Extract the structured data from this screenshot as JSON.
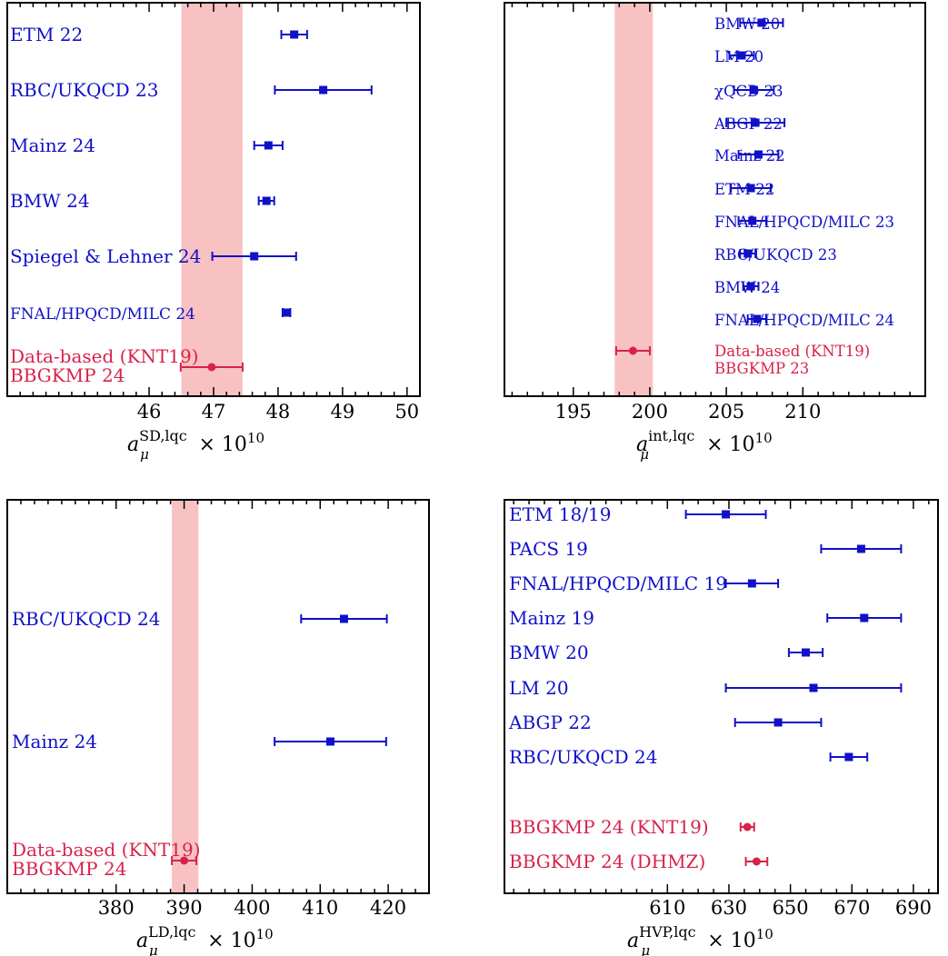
{
  "colors": {
    "lattice": "#1010c8",
    "data_based": "#d8224a",
    "band": "#f9c2c2"
  },
  "chart_data": [
    {
      "id": "sd",
      "type": "scatter",
      "subtype": "forest-plot",
      "xlabel": {
        "symbol": "a",
        "sub": "μ",
        "sup": "SD,lqc",
        "factor": "× 10",
        "exp": "10"
      },
      "xlim": [
        43.8,
        50.2
      ],
      "ticks": [
        46,
        47,
        48,
        49,
        50
      ],
      "tick_labels": [
        "46",
        "47",
        "48",
        "49",
        "50"
      ],
      "band": [
        46.5,
        47.45
      ],
      "entries": [
        {
          "label": "ETM 22",
          "value": 48.25,
          "err_lo": 0.2,
          "err_hi": 0.2,
          "group": "lattice"
        },
        {
          "label": "RBC/UKQCD 23",
          "value": 48.7,
          "err_lo": 0.75,
          "err_hi": 0.75,
          "group": "lattice"
        },
        {
          "label": "Mainz 24",
          "value": 47.85,
          "err_lo": 0.22,
          "err_hi": 0.22,
          "group": "lattice"
        },
        {
          "label": "BMW 24",
          "value": 47.82,
          "err_lo": 0.12,
          "err_hi": 0.12,
          "group": "lattice"
        },
        {
          "label": "Spiegel & Lehner 24",
          "value": 47.63,
          "err_lo": 0.65,
          "err_hi": 0.65,
          "group": "lattice"
        },
        {
          "label": "FNAL/HPQCD/MILC 24",
          "value": 48.13,
          "err_lo": 0.06,
          "err_hi": 0.06,
          "group": "lattice"
        },
        {
          "label": "Data-based (KNT19)",
          "label2": "BBGKMP 24",
          "value": 46.97,
          "err_lo": 0.48,
          "err_hi": 0.48,
          "group": "data"
        }
      ]
    },
    {
      "id": "int",
      "type": "scatter",
      "subtype": "forest-plot",
      "xlabel": {
        "symbol": "a",
        "sub": "μ",
        "sup": "int,lqc",
        "factor": "× 10",
        "exp": "10"
      },
      "xlim": [
        190.5,
        218
      ],
      "ticks": [
        195,
        200,
        205,
        210
      ],
      "tick_labels": [
        "195",
        "200",
        "205",
        "210"
      ],
      "band": [
        197.7,
        200.2
      ],
      "entries": [
        {
          "label": "BMW 20",
          "value": 207.3,
          "err_lo": 1.4,
          "err_hi": 1.4,
          "group": "lattice"
        },
        {
          "label": "LM 20",
          "value": 206.0,
          "err_lo": 0.8,
          "err_hi": 0.8,
          "group": "lattice"
        },
        {
          "label": "χQCD 23",
          "value": 206.8,
          "err_lo": 1.3,
          "err_hi": 1.3,
          "group": "lattice"
        },
        {
          "label": "ABGP 22",
          "value": 206.9,
          "err_lo": 1.9,
          "err_hi": 1.9,
          "group": "lattice"
        },
        {
          "label": "Mainz 22",
          "value": 207.1,
          "err_lo": 1.3,
          "err_hi": 1.3,
          "group": "lattice"
        },
        {
          "label": "ETM 22",
          "value": 206.6,
          "err_lo": 1.3,
          "err_hi": 1.3,
          "group": "lattice"
        },
        {
          "label": "FNAL/HPQCD/MILC 23",
          "value": 206.7,
          "err_lo": 0.9,
          "err_hi": 0.9,
          "group": "lattice"
        },
        {
          "label": "RBC/UKQCD 23",
          "value": 206.4,
          "err_lo": 0.5,
          "err_hi": 0.5,
          "group": "lattice"
        },
        {
          "label": "BMW 24",
          "value": 206.6,
          "err_lo": 0.5,
          "err_hi": 0.5,
          "group": "lattice"
        },
        {
          "label": "FNAL/HPQCD/MILC 24",
          "value": 207.0,
          "err_lo": 0.6,
          "err_hi": 0.6,
          "group": "lattice"
        },
        {
          "label": "Data-based (KNT19)",
          "label2": "BBGKMP 23",
          "value": 198.9,
          "err_lo": 1.1,
          "err_hi": 1.1,
          "group": "data"
        }
      ]
    },
    {
      "id": "ld",
      "type": "scatter",
      "subtype": "forest-plot",
      "xlabel": {
        "symbol": "a",
        "sub": "μ",
        "sup": "LD,lqc",
        "factor": "× 10",
        "exp": "10"
      },
      "xlim": [
        364,
        426
      ],
      "ticks": [
        380,
        390,
        400,
        410,
        420
      ],
      "tick_labels": [
        "380",
        "390",
        "400",
        "410",
        "420"
      ],
      "band": [
        388.2,
        392.1
      ],
      "entries": [
        {
          "label": "RBC/UKQCD 24",
          "value": 413.5,
          "err_lo": 6.3,
          "err_hi": 6.3,
          "group": "lattice"
        },
        {
          "label": "Mainz 24",
          "value": 411.5,
          "err_lo": 8.2,
          "err_hi": 8.2,
          "group": "lattice"
        },
        {
          "label": "Data-based (KNT19)",
          "label2": "BBGKMP 24",
          "value": 390.0,
          "err_lo": 1.8,
          "err_hi": 1.8,
          "group": "data"
        }
      ]
    },
    {
      "id": "hvp",
      "type": "scatter",
      "subtype": "forest-plot",
      "xlabel": {
        "symbol": "a",
        "sub": "μ",
        "sup": "HVP,lqc",
        "factor": "× 10",
        "exp": "10"
      },
      "xlim": [
        557,
        698
      ],
      "ticks": [
        610,
        630,
        650,
        670,
        690
      ],
      "tick_labels": [
        "610",
        "630",
        "650",
        "670",
        "690"
      ],
      "band": null,
      "entries": [
        {
          "label": "ETM 18/19",
          "value": 629,
          "err_lo": 13,
          "err_hi": 13,
          "group": "lattice"
        },
        {
          "label": "PACS 19",
          "value": 673,
          "err_lo": 13,
          "err_hi": 13,
          "group": "lattice"
        },
        {
          "label": "FNAL/HPQCD/MILC 19",
          "value": 637.5,
          "err_lo": 8.5,
          "err_hi": 8.5,
          "group": "lattice"
        },
        {
          "label": "Mainz 19",
          "value": 674,
          "err_lo": 12,
          "err_hi": 12,
          "group": "lattice"
        },
        {
          "label": "BMW 20",
          "value": 655,
          "err_lo": 5.5,
          "err_hi": 5.5,
          "group": "lattice"
        },
        {
          "label": "LM 20",
          "value": 657.5,
          "err_lo": 28.5,
          "err_hi": 28.5,
          "group": "lattice"
        },
        {
          "label": "ABGP 22",
          "value": 646,
          "err_lo": 14,
          "err_hi": 14,
          "group": "lattice"
        },
        {
          "label": "RBC/UKQCD 24",
          "value": 669,
          "err_lo": 6,
          "err_hi": 6,
          "group": "lattice"
        },
        {
          "label": "BBGKMP 24 (KNT19)",
          "value": 636,
          "err_lo": 2.2,
          "err_hi": 2.2,
          "group": "data"
        },
        {
          "label": "BBGKMP 24 (DHMZ)",
          "value": 639,
          "err_lo": 3.5,
          "err_hi": 3.5,
          "group": "data"
        }
      ]
    }
  ]
}
